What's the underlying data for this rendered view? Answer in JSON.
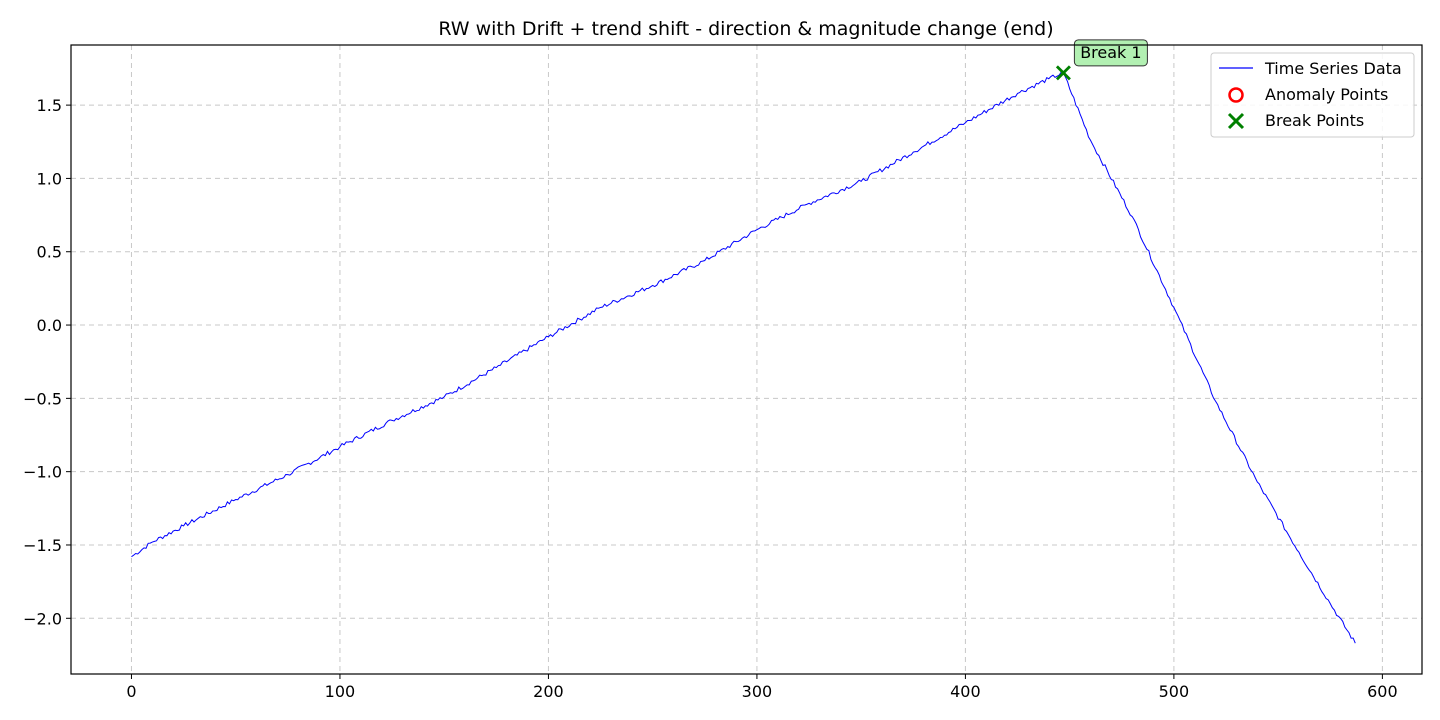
{
  "chart_data": {
    "type": "line",
    "title": "RW with Drift + trend shift - direction & magnitude change (end)",
    "xlabel": "",
    "ylabel": "",
    "xlim": [
      -29,
      619
    ],
    "ylim": [
      -2.38,
      1.91
    ],
    "x_ticks": [
      0,
      100,
      200,
      300,
      400,
      500,
      600
    ],
    "y_ticks": [
      -2.0,
      -1.5,
      -1.0,
      -0.5,
      0.0,
      0.5,
      1.0,
      1.5
    ],
    "x_tick_labels": [
      "0",
      "100",
      "200",
      "300",
      "400",
      "500",
      "600"
    ],
    "y_tick_labels": [
      "−2.0",
      "−1.5",
      "−1.0",
      "−0.5",
      "0.0",
      "0.5",
      "1.0",
      "1.5"
    ],
    "grid": true,
    "legend_position": "top-right",
    "series": [
      {
        "name": "Time Series Data",
        "color": "#0000ff",
        "x": [
          0,
          10,
          25,
          50,
          75,
          100,
          125,
          150,
          175,
          200,
          225,
          250,
          275,
          300,
          325,
          350,
          375,
          400,
          425,
          440,
          447,
          460,
          480,
          500,
          520,
          540,
          560,
          575,
          587
        ],
        "y": [
          -1.58,
          -1.48,
          -1.37,
          -1.19,
          -1.02,
          -0.83,
          -0.65,
          -0.49,
          -0.29,
          -0.08,
          0.12,
          0.27,
          0.44,
          0.65,
          0.83,
          0.98,
          1.18,
          1.38,
          1.58,
          1.68,
          1.72,
          1.26,
          0.74,
          0.12,
          -0.52,
          -1.07,
          -1.55,
          -1.9,
          -2.17
        ]
      }
    ],
    "anomaly_points": {
      "name": "Anomaly Points",
      "color": "#ff0000",
      "points": []
    },
    "break_points": {
      "name": "Break Points",
      "color": "#008000",
      "points": [
        {
          "x": 447,
          "y": 1.72,
          "label": "Break 1"
        }
      ]
    }
  }
}
